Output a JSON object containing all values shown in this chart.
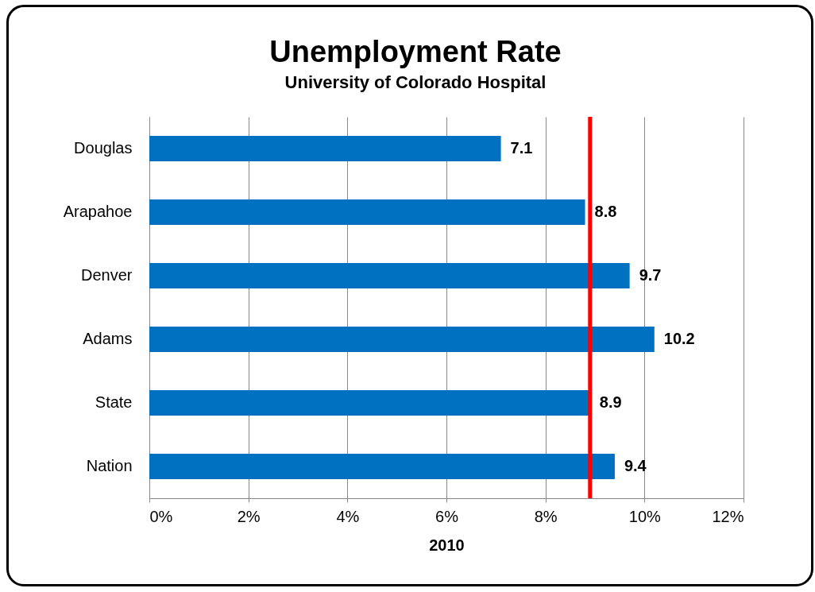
{
  "chart_data": {
    "type": "bar",
    "orientation": "horizontal",
    "title": "Unemployment Rate",
    "subtitle": "University of Colorado Hospital",
    "xlabel": "2010",
    "categories": [
      "Douglas",
      "Arapahoe",
      "Denver",
      "Adams",
      "State",
      "Nation"
    ],
    "values": [
      7.1,
      8.8,
      9.7,
      10.2,
      8.9,
      9.4
    ],
    "color": "#0070c0",
    "data_labels": true,
    "xlim": [
      0,
      12
    ],
    "xticks": [
      {
        "value": 0,
        "label": "0%"
      },
      {
        "value": 2,
        "label": "2%"
      },
      {
        "value": 4,
        "label": "4%"
      },
      {
        "value": 6,
        "label": "6%"
      },
      {
        "value": 8,
        "label": "8%"
      },
      {
        "value": 10,
        "label": "10%"
      },
      {
        "value": 12,
        "label": "12%"
      }
    ],
    "grid": "x",
    "ref_lines": [
      {
        "axis": "x",
        "value": 8.9,
        "color": "#ff0000"
      }
    ]
  }
}
